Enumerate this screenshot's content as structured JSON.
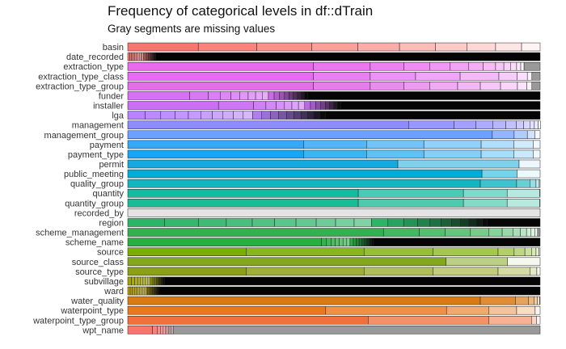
{
  "chart_data": {
    "type": "bar",
    "orientation": "horizontal",
    "stacked": true,
    "normalized": true,
    "title": "Frequency of categorical levels in df::dTrain",
    "subtitle": "Gray segments are missing values",
    "xlabel": "",
    "ylabel": "",
    "xlim": [
      0,
      1
    ],
    "grid": false,
    "legend": "none",
    "missing_color": "#999999",
    "categories": [
      "basin",
      "date_recorded",
      "extraction_type",
      "extraction_type_class",
      "extraction_type_group",
      "funder",
      "installer",
      "lga",
      "management",
      "management_group",
      "payment",
      "payment_type",
      "permit",
      "public_meeting",
      "quality_group",
      "quantity",
      "quantity_group",
      "recorded_by",
      "region",
      "scheme_management",
      "scheme_name",
      "source",
      "source_class",
      "source_type",
      "subvillage",
      "ward",
      "water_quality",
      "waterpoint_type",
      "waterpoint_type_group",
      "wpt_name"
    ],
    "colors": [
      "#F8766D",
      "#F2766F",
      "#EC69EF",
      "#E76BF3",
      "#E56DEA",
      "#D770F5",
      "#CB6DF7",
      "#B983FF",
      "#8C8CFF",
      "#6FA0FF",
      "#33A9F7",
      "#18A6F2",
      "#12AAE0",
      "#00ADD8",
      "#10B6C2",
      "#13BB9F",
      "#18BC95",
      "#E4E4E4",
      "#2BB567",
      "#2FB350",
      "#26B03F",
      "#7CAE00",
      "#83A81B",
      "#8CA112",
      "#A3A500",
      "#B89F00",
      "#D97A12",
      "#E8791D",
      "#F0713C",
      "#F8766D"
    ],
    "values": [
      [
        0.171,
        0.142,
        0.133,
        0.112,
        0.101,
        0.087,
        0.077,
        0.069,
        0.063,
        0.045
      ],
      [
        0.005,
        0.004,
        0.004,
        0.004,
        0.004,
        0.004,
        0.004,
        0.003,
        0.003,
        0.003,
        0.003,
        0.003,
        0.003,
        0.003,
        0.003,
        0.003,
        0.003,
        0.003,
        0.003,
        0.003
      ],
      [
        0.45,
        0.138,
        0.082,
        0.062,
        0.05,
        0.045,
        0.035,
        0.03,
        0.02,
        0.016,
        0.015,
        0.01,
        0.008
      ],
      [
        0.45,
        0.138,
        0.11,
        0.108,
        0.094,
        0.044,
        0.025,
        0.011
      ],
      [
        0.45,
        0.138,
        0.082,
        0.062,
        0.068,
        0.055,
        0.049,
        0.041,
        0.023,
        0.012
      ],
      [
        0.15,
        0.045,
        0.03,
        0.025,
        0.022,
        0.02,
        0.018,
        0.016,
        0.015,
        0.014,
        0.013,
        0.012,
        0.011,
        0.01,
        0.01,
        0.009,
        0.008,
        0.008
      ],
      [
        0.22,
        0.085,
        0.03,
        0.025,
        0.02,
        0.018,
        0.016,
        0.015,
        0.014,
        0.013,
        0.012,
        0.011,
        0.01,
        0.01,
        0.009,
        0.008
      ],
      [
        0.042,
        0.038,
        0.035,
        0.032,
        0.03,
        0.028,
        0.026,
        0.025,
        0.024,
        0.023,
        0.022,
        0.021,
        0.02,
        0.019,
        0.018,
        0.017,
        0.016,
        0.015,
        0.015,
        0.014
      ],
      [
        0.681,
        0.11,
        0.053,
        0.041,
        0.032,
        0.025,
        0.018,
        0.015,
        0.011,
        0.009,
        0.006
      ],
      [
        0.884,
        0.053,
        0.032,
        0.018,
        0.013
      ],
      [
        0.427,
        0.152,
        0.139,
        0.139,
        0.079,
        0.047,
        0.017
      ],
      [
        0.427,
        0.152,
        0.139,
        0.139,
        0.079,
        0.047,
        0.017
      ],
      [
        0.655,
        0.294,
        0.051
      ],
      [
        0.859,
        0.085,
        0.056
      ],
      [
        0.855,
        0.088,
        0.032,
        0.015,
        0.008,
        0.002
      ],
      [
        0.559,
        0.255,
        0.106,
        0.079,
        0.001
      ],
      [
        0.559,
        0.255,
        0.106,
        0.079,
        0.001
      ],
      [
        1.0
      ],
      [
        0.089,
        0.083,
        0.067,
        0.063,
        0.054,
        0.052,
        0.049,
        0.047,
        0.045,
        0.042,
        0.04,
        0.038,
        0.034,
        0.03,
        0.027,
        0.025,
        0.022,
        0.02,
        0.018,
        0.015,
        0.012
      ],
      [
        0.62,
        0.087,
        0.063,
        0.061,
        0.045,
        0.032,
        0.026,
        0.018,
        0.015,
        0.011,
        0.009,
        0.007
      ],
      [
        0.47,
        0.012,
        0.011,
        0.01,
        0.01,
        0.009,
        0.009,
        0.008,
        0.008,
        0.007,
        0.007,
        0.007,
        0.006,
        0.006,
        0.006,
        0.005,
        0.005
      ],
      [
        0.287,
        0.286,
        0.167,
        0.158,
        0.039,
        0.026,
        0.016,
        0.011,
        0.007,
        0.003
      ],
      [
        0.772,
        0.149,
        0.079
      ],
      [
        0.287,
        0.286,
        0.167,
        0.158,
        0.078,
        0.016,
        0.008
      ],
      [
        0.009,
        0.008,
        0.007,
        0.007,
        0.006,
        0.006,
        0.006,
        0.005,
        0.005,
        0.005,
        0.005,
        0.004,
        0.004,
        0.004,
        0.004,
        0.004
      ],
      [
        0.006,
        0.005,
        0.005,
        0.005,
        0.004,
        0.004,
        0.004,
        0.004,
        0.004,
        0.004,
        0.003,
        0.003,
        0.003,
        0.003,
        0.003,
        0.003,
        0.003,
        0.003,
        0.003,
        0.003
      ],
      [
        0.855,
        0.085,
        0.032,
        0.013,
        0.008,
        0.006,
        0.001
      ],
      [
        0.48,
        0.293,
        0.103,
        0.067,
        0.045,
        0.012
      ],
      [
        0.583,
        0.293,
        0.103,
        0.012,
        0.009
      ],
      [
        0.06,
        0.012,
        0.008,
        0.006,
        0.005,
        0.004,
        0.004,
        0.003,
        0.003,
        0.003,
        0.003
      ]
    ]
  }
}
